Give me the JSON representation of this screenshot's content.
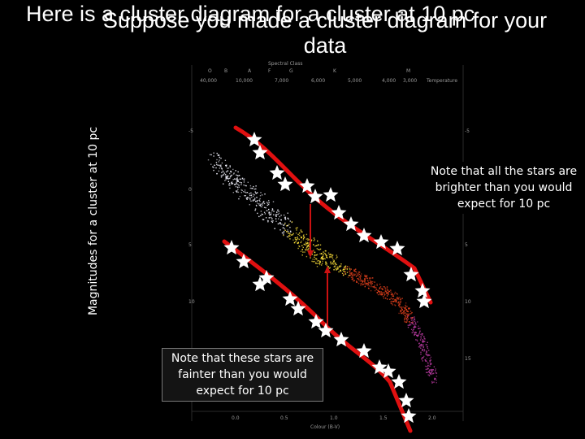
{
  "title_overlay_1": "Here is a cluster diagram for a cluster at 10 pc",
  "title_overlay_2": "Suppose you made a cluster diagram for your data",
  "y_axis_label": "Magnitudes for a cluster at 10 pc",
  "note_brighter": "Note that all the stars are brighter than you would expect for 10 pc",
  "note_fainter": "Note that these stars are fainter than you would expect for 10 pc",
  "inner_plot": {
    "spectral_label": "Spectral Class",
    "spectral_letters": [
      "O",
      "B",
      "A",
      "F",
      "G",
      "K",
      "M"
    ],
    "temperature_label": "Temperature",
    "temperatures": [
      "40,000",
      "10,000",
      "7,000",
      "6,000",
      "5,000",
      "4,000",
      "3,000"
    ],
    "x_label": "Colour (B-V)",
    "x_ticks": [
      "0.0",
      "0.5",
      "1.0",
      "1.5",
      "2.0"
    ],
    "left_ticks": [
      "-5",
      "0",
      "5",
      "10",
      "15"
    ],
    "right_ticks": [
      "-5",
      "0",
      "5",
      "10",
      "15"
    ]
  },
  "colors": {
    "background": "#000000",
    "fit_line": "#e01010",
    "arrow": "#cc1111",
    "star_marker": "#ffffff",
    "sequence_hot": "#f4f4ff",
    "sequence_mid": "#ffe23a",
    "sequence_cool": "#e2401c"
  },
  "icons": {
    "marker": "five-point-star-icon"
  }
}
